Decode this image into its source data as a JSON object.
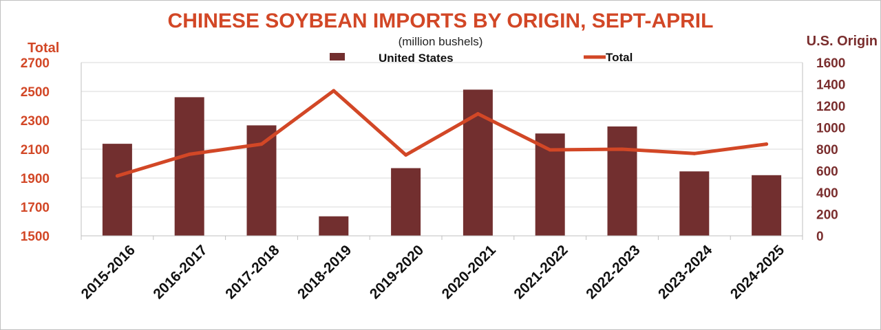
{
  "chart_data": {
    "type": "bar",
    "title": "CHINESE SOYBEAN IMPORTS BY ORIGIN, SEPT-APRIL",
    "subtitle": "(million bushels)",
    "ylabel_left": "Total",
    "ylabel_right": "U.S. Origin",
    "categories": [
      "2015-2016",
      "2016-2017",
      "2017-2018",
      "2018-2019",
      "2019-2020",
      "2020-2021",
      "2021-2022",
      "2022-2023",
      "2023-2024",
      "2024-2025"
    ],
    "series": [
      {
        "name": "United States",
        "type": "bar",
        "axis": "right",
        "color": "#722f2f",
        "values": [
          850,
          1280,
          1020,
          180,
          625,
          1350,
          945,
          1010,
          595,
          560
        ]
      },
      {
        "name": "Total",
        "type": "line",
        "axis": "left",
        "color": "#d24726",
        "values": [
          1915,
          2065,
          2135,
          2505,
          2060,
          2345,
          2095,
          2100,
          2070,
          2135
        ]
      }
    ],
    "ylim_left": [
      1500,
      2700
    ],
    "yticks_left": [
      "2700",
      "2500",
      "2300",
      "2100",
      "1900",
      "1700",
      "1500"
    ],
    "ylim_right": [
      0,
      1600
    ],
    "yticks_right": [
      "1600",
      "1400",
      "1200",
      "1000",
      "800",
      "600",
      "400",
      "200",
      "0"
    ],
    "grid": true,
    "legend_position": "top"
  }
}
